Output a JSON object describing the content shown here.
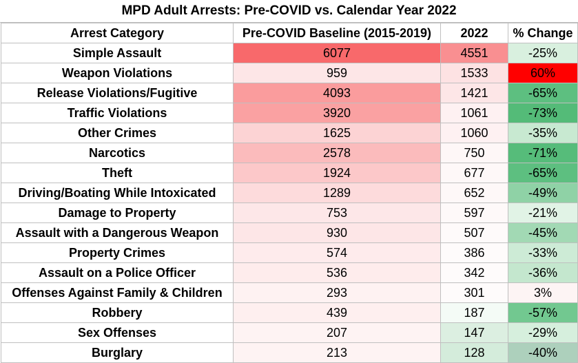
{
  "chart_data": {
    "type": "table",
    "title": "MPD Adult Arrests: Pre-COVID vs. Calendar Year 2022",
    "columns": [
      "Arrest Category",
      "Pre-COVID Baseline (2015-2019)",
      "2022",
      "% Change"
    ],
    "rows": [
      {
        "category": "Simple Assault",
        "baseline": 6077,
        "y2022": 4551,
        "change": "-25%"
      },
      {
        "category": "Weapon Violations",
        "baseline": 959,
        "y2022": 1533,
        "change": "60%"
      },
      {
        "category": "Release Violations/Fugitive",
        "baseline": 4093,
        "y2022": 1421,
        "change": "-65%"
      },
      {
        "category": "Traffic Violations",
        "baseline": 3920,
        "y2022": 1061,
        "change": "-73%"
      },
      {
        "category": "Other Crimes",
        "baseline": 1625,
        "y2022": 1060,
        "change": "-35%"
      },
      {
        "category": "Narcotics",
        "baseline": 2578,
        "y2022": 750,
        "change": "-71%"
      },
      {
        "category": "Theft",
        "baseline": 1924,
        "y2022": 677,
        "change": "-65%"
      },
      {
        "category": "Driving/Boating While Intoxicated",
        "baseline": 1289,
        "y2022": 652,
        "change": "-49%"
      },
      {
        "category": "Damage to Property",
        "baseline": 753,
        "y2022": 597,
        "change": "-21%"
      },
      {
        "category": "Assault with a Dangerous Weapon",
        "baseline": 930,
        "y2022": 507,
        "change": "-45%"
      },
      {
        "category": "Property Crimes",
        "baseline": 574,
        "y2022": 386,
        "change": "-33%"
      },
      {
        "category": "Assault on a Police Officer",
        "baseline": 536,
        "y2022": 342,
        "change": "-36%"
      },
      {
        "category": "Offenses Against Family & Children",
        "baseline": 293,
        "y2022": 301,
        "change": "3%"
      },
      {
        "category": "Robbery",
        "baseline": 439,
        "y2022": 187,
        "change": "-57%"
      },
      {
        "category": "Sex Offenses",
        "baseline": 207,
        "y2022": 147,
        "change": "-29%"
      },
      {
        "category": "Burglary",
        "baseline": 213,
        "y2022": 128,
        "change": "-40%"
      }
    ],
    "cell_colors": {
      "baseline": [
        "#f8696b",
        "#fde6e7",
        "#fa9c9d",
        "#faa1a2",
        "#fcd3d4",
        "#fbbbbc",
        "#fcc8c9",
        "#fddbdc",
        "#fde7e8",
        "#fde6e7",
        "#feebec",
        "#feecec",
        "#fef2f2",
        "#feefef",
        "#fef3f3",
        "#fef3f3"
      ],
      "y2022": [
        "#f98f91",
        "#fde2e3",
        "#fde6e7",
        "#fef1f2",
        "#fef1f2",
        "#fef7f7",
        "#fef8f8",
        "#fef8f8",
        "#fef9f9",
        "#fefafa",
        "#fefbfb",
        "#fefbfb",
        "#fefbfb",
        "#f4fbf6",
        "#dcefe1",
        "#d4ecdb"
      ],
      "change": [
        "#d9f0df",
        "#ff0000",
        "#5dbf80",
        "#54bb78",
        "#c8e9d1",
        "#56bc7a",
        "#5dbf80",
        "#8fd2a6",
        "#e1f3e6",
        "#a2d9b4",
        "#cdebd6",
        "#c4e7ce",
        "#fdf4f4",
        "#72c890",
        "#d6efdd",
        "#add0bc"
      ]
    }
  }
}
